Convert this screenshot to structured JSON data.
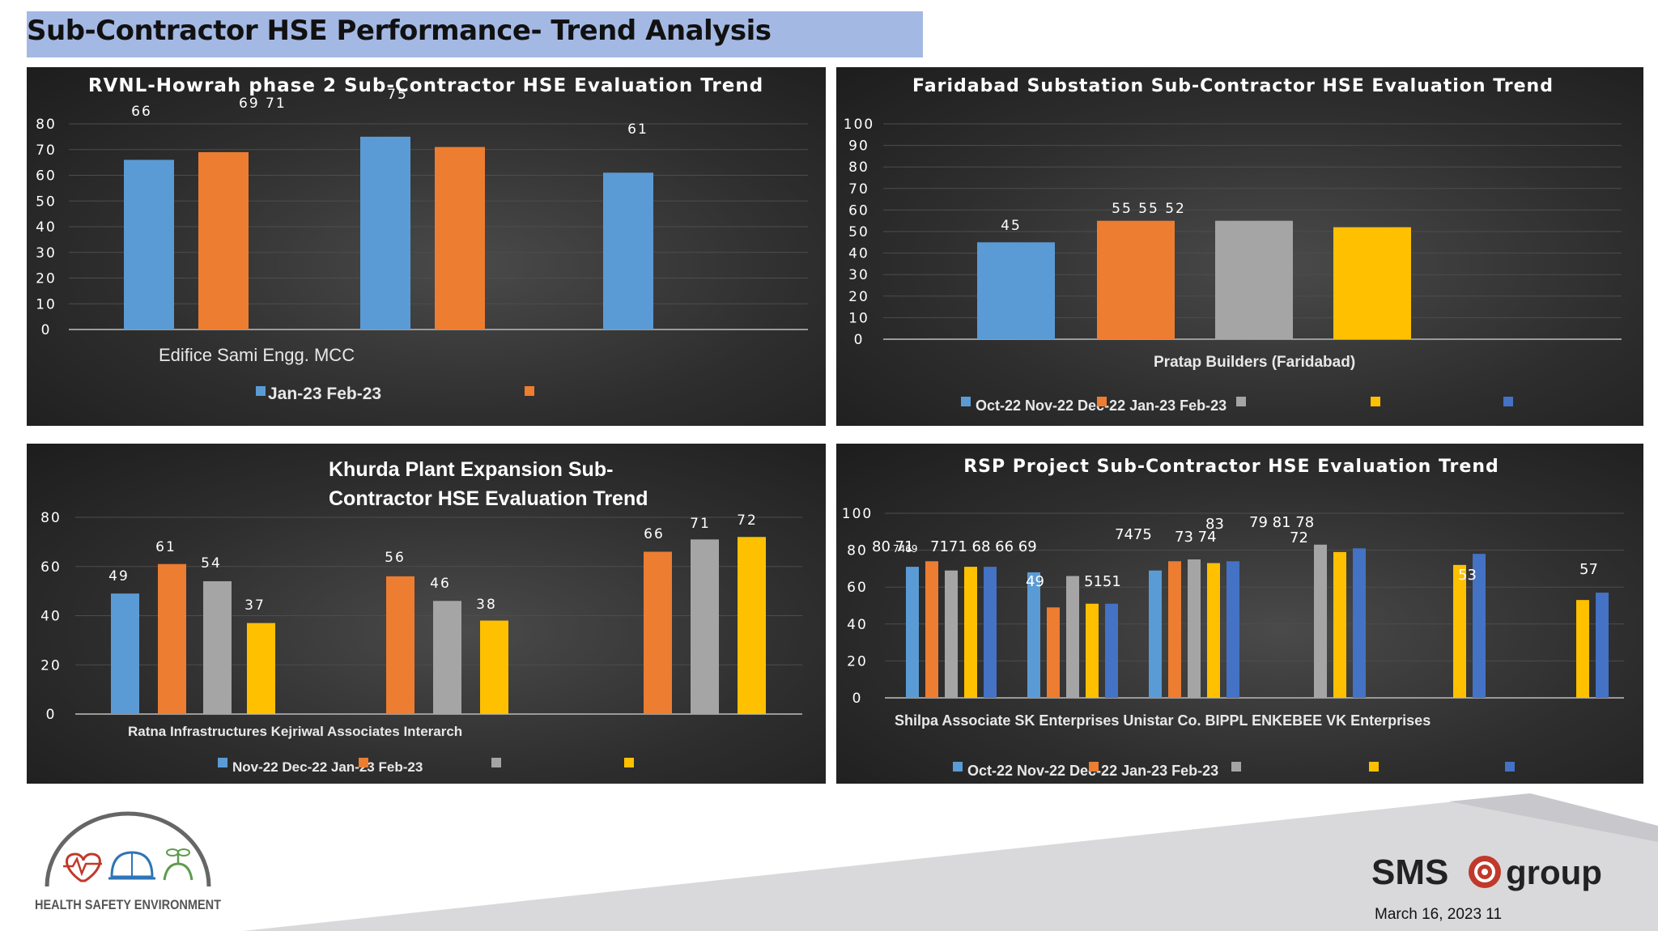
{
  "page": {
    "title": "Sub-Contractor HSE Performance- Trend Analysis",
    "footer_date": "March 16, 2023 11",
    "logo_text": "HEALTH SAFETY ENVIRONMENT",
    "brand": {
      "left": "SMS",
      "right": "group"
    }
  },
  "colors": {
    "blue": "#5b9bd5",
    "orange": "#ed7d31",
    "gray": "#a5a5a5",
    "yellow": "#ffc000",
    "darkblue": "#4472c4",
    "title_bar": "#a4b8e4"
  },
  "chart_data": [
    {
      "type": "bar",
      "title": "RVNL-Howrah phase 2 Sub-Contractor HSE Evaluation Trend",
      "ylim": [
        0,
        80
      ],
      "yticks": [
        0,
        10,
        20,
        30,
        40,
        50,
        60,
        70,
        80
      ],
      "category_label_text": "Edifice Sami Engg. MCC",
      "legend_text": "Jan-23 Feb-23",
      "legend_colors": [
        "blue",
        "orange"
      ],
      "bars": [
        {
          "category": "Edifice",
          "series": "Jan-23",
          "value": 66,
          "color": "blue"
        },
        {
          "category": "Edifice",
          "series": "Feb-23",
          "value": 69,
          "color": "orange"
        },
        {
          "category": "Sami Engg.",
          "series": "Jan-23",
          "value": 75,
          "color": "blue"
        },
        {
          "category": "Sami Engg.",
          "series": "Feb-23",
          "value": 71,
          "color": "orange"
        },
        {
          "category": "MCC",
          "series": "Jan-23",
          "value": 61,
          "color": "blue"
        }
      ],
      "value_labels": [
        "66",
        "69 71",
        "75",
        "61"
      ]
    },
    {
      "type": "bar",
      "title": "Faridabad Substation Sub-Contractor HSE Evaluation Trend",
      "ylim": [
        0,
        100
      ],
      "yticks": [
        0,
        10,
        20,
        30,
        40,
        50,
        60,
        70,
        80,
        90,
        100
      ],
      "category_label_text": "Pratap Builders (Faridabad)",
      "legend_text": "Oct-22 Nov-22 Dec-22 Jan-23 Feb-23",
      "legend_colors": [
        "blue",
        "orange",
        "gray",
        "yellow",
        "darkblue"
      ],
      "bars": [
        {
          "category": "Pratap Builders (Faridabad)",
          "series": "Oct-22",
          "value": 45,
          "color": "blue"
        },
        {
          "category": "Pratap Builders (Faridabad)",
          "series": "Nov-22",
          "value": 55,
          "color": "orange"
        },
        {
          "category": "Pratap Builders (Faridabad)",
          "series": "Dec-22",
          "value": 55,
          "color": "gray"
        },
        {
          "category": "Pratap Builders (Faridabad)",
          "series": "Jan-23",
          "value": 52,
          "color": "yellow"
        }
      ],
      "value_labels": [
        "45",
        "55 55 52"
      ]
    },
    {
      "type": "bar",
      "title": "Khurda Plant Expansion Sub-Contractor HSE Evaluation Trend",
      "title_lines": [
        "Khurda Plant Expansion Sub-",
        "Contractor HSE Evaluation Trend"
      ],
      "ylim": [
        0,
        80
      ],
      "yticks": [
        0,
        20,
        40,
        60,
        80
      ],
      "category_label_text": "Ratna Infrastructures Kejriwal Associates Interarch",
      "legend_text": "Nov-22 Dec-22 Jan-23 Feb-23",
      "legend_colors": [
        "blue",
        "orange",
        "gray",
        "yellow"
      ],
      "bars": [
        {
          "category": "Ratna Infrastructures",
          "series": "Nov-22",
          "value": 49,
          "color": "blue"
        },
        {
          "category": "Ratna Infrastructures",
          "series": "Dec-22",
          "value": 61,
          "color": "orange"
        },
        {
          "category": "Ratna Infrastructures",
          "series": "Jan-23",
          "value": 54,
          "color": "gray"
        },
        {
          "category": "Ratna Infrastructures",
          "series": "Feb-23",
          "value": 37,
          "color": "yellow"
        },
        {
          "category": "Kejriwal Associates",
          "series": "Dec-22",
          "value": 56,
          "color": "orange"
        },
        {
          "category": "Kejriwal Associates",
          "series": "Jan-23",
          "value": 46,
          "color": "gray"
        },
        {
          "category": "Kejriwal Associates",
          "series": "Feb-23",
          "value": 38,
          "color": "yellow"
        },
        {
          "category": "Interarch",
          "series": "Dec-22",
          "value": 66,
          "color": "orange"
        },
        {
          "category": "Interarch",
          "series": "Jan-23",
          "value": 71,
          "color": "gray"
        },
        {
          "category": "Interarch",
          "series": "Feb-23",
          "value": 72,
          "color": "yellow"
        }
      ],
      "value_labels": [
        "49",
        "61",
        "54",
        "37",
        "56",
        "46",
        "38",
        "66",
        "71",
        "72"
      ]
    },
    {
      "type": "bar",
      "title": "RSP Project Sub-Contractor HSE Evaluation Trend",
      "ylim": [
        0,
        100
      ],
      "yticks": [
        0,
        20,
        40,
        60,
        80,
        100
      ],
      "category_label_text": "Shilpa Associate SK Enterprises Unistar Co. BIPPL ENKEBEE VK Enterprises",
      "legend_text": "Oct-22 Nov-22 Dec-22 Jan-23 Feb-23",
      "legend_colors": [
        "blue",
        "orange",
        "gray",
        "yellow",
        "darkblue"
      ],
      "bars": [
        {
          "category": "Shilpa Associate",
          "series": "Oct-22",
          "value": 71,
          "color": "blue"
        },
        {
          "category": "Shilpa Associate",
          "series": "Nov-22",
          "value": 74,
          "color": "orange"
        },
        {
          "category": "Shilpa Associate",
          "series": "Dec-22",
          "value": 69,
          "color": "gray"
        },
        {
          "category": "Shilpa Associate",
          "series": "Jan-23",
          "value": 71,
          "color": "yellow"
        },
        {
          "category": "Shilpa Associate",
          "series": "Feb-23",
          "value": 71,
          "color": "darkblue"
        },
        {
          "category": "SK Enterprises",
          "series": "Oct-22",
          "value": 68,
          "color": "blue"
        },
        {
          "category": "SK Enterprises",
          "series": "Nov-22",
          "value": 49,
          "color": "orange"
        },
        {
          "category": "SK Enterprises",
          "series": "Dec-22",
          "value": 66,
          "color": "gray"
        },
        {
          "category": "SK Enterprises",
          "series": "Jan-23",
          "value": 51,
          "color": "yellow"
        },
        {
          "category": "SK Enterprises",
          "series": "Feb-23",
          "value": 51,
          "color": "darkblue"
        },
        {
          "category": "Unistar Co.",
          "series": "Oct-22",
          "value": 69,
          "color": "blue"
        },
        {
          "category": "Unistar Co.",
          "series": "Nov-22",
          "value": 74,
          "color": "orange"
        },
        {
          "category": "Unistar Co.",
          "series": "Dec-22",
          "value": 75,
          "color": "gray"
        },
        {
          "category": "Unistar Co.",
          "series": "Jan-23",
          "value": 73,
          "color": "yellow"
        },
        {
          "category": "Unistar Co.",
          "series": "Feb-23",
          "value": 74,
          "color": "darkblue"
        },
        {
          "category": "BIPPL",
          "series": "Dec-22",
          "value": 83,
          "color": "gray"
        },
        {
          "category": "BIPPL",
          "series": "Jan-23",
          "value": 79,
          "color": "yellow"
        },
        {
          "category": "BIPPL",
          "series": "Feb-23",
          "value": 81,
          "color": "darkblue"
        },
        {
          "category": "ENKEBEE",
          "series": "Jan-23",
          "value": 72,
          "color": "yellow"
        },
        {
          "category": "ENKEBEE",
          "series": "Feb-23",
          "value": 78,
          "color": "darkblue"
        },
        {
          "category": "VK Enterprises",
          "series": "Jan-23",
          "value": 53,
          "color": "yellow"
        },
        {
          "category": "VK Enterprises",
          "series": "Feb-23",
          "value": 57,
          "color": "darkblue"
        }
      ],
      "value_labels": [
        "80 71",
        "7469",
        "7171 68 66 69",
        "49",
        "5151",
        "7475",
        "73 74",
        "83",
        "79 81 78",
        "72",
        "53",
        "57"
      ]
    }
  ]
}
